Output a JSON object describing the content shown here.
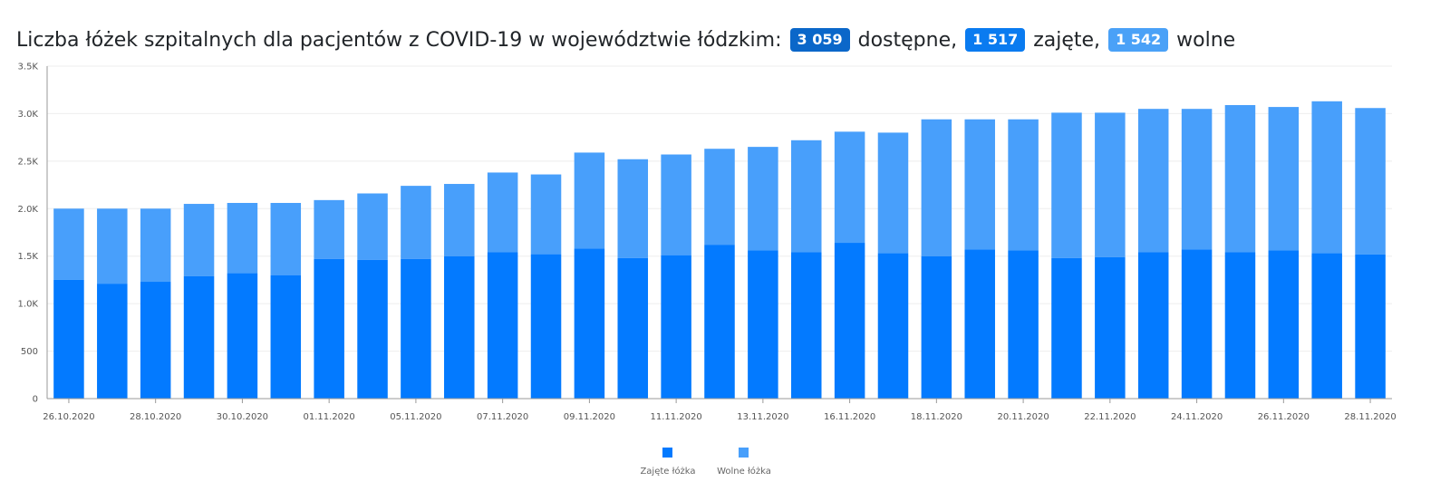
{
  "title": {
    "prefix": "Liczba łóżek szpitalnych dla pacjentów z COVID-19 w województwie łódzkim:",
    "badge_available": "3 059",
    "label_available": "dostępne,",
    "badge_occupied": "1 517",
    "label_occupied": "zajęte,",
    "badge_free": "1 542",
    "label_free": "wolne"
  },
  "colors": {
    "badge_available": "#0b67c9",
    "badge_occupied": "#0a7bf0",
    "badge_free": "#4aa1f7",
    "occupied": "#037aff",
    "free": "#489ffb",
    "axis": "#999999",
    "grid": "#eeeeee"
  },
  "chart_data": {
    "type": "bar",
    "stacked": true,
    "x": [
      "26.10.2020",
      "27.10.2020",
      "28.10.2020",
      "29.10.2020",
      "30.10.2020",
      "31.10.2020",
      "01.11.2020",
      "02.11.2020",
      "05.11.2020",
      "06.11.2020",
      "07.11.2020",
      "08.11.2020",
      "09.11.2020",
      "10.11.2020",
      "11.11.2020",
      "12.11.2020",
      "13.11.2020",
      "14.11.2020",
      "16.11.2020",
      "17.11.2020",
      "18.11.2020",
      "19.11.2020",
      "20.11.2020",
      "21.11.2020",
      "22.11.2020",
      "23.11.2020",
      "24.11.2020",
      "25.11.2020",
      "26.11.2020",
      "27.11.2020",
      "28.11.2020"
    ],
    "x_tick_labels": [
      "26.10.2020",
      "28.10.2020",
      "30.10.2020",
      "01.11.2020",
      "05.11.2020",
      "07.11.2020",
      "09.11.2020",
      "11.11.2020",
      "13.11.2020",
      "16.11.2020",
      "18.11.2020",
      "20.11.2020",
      "22.11.2020",
      "24.11.2020",
      "26.11.2020",
      "28.11.2020"
    ],
    "series": [
      {
        "name": "Zajęte łóżka",
        "values": [
          1250,
          1210,
          1230,
          1290,
          1320,
          1300,
          1470,
          1460,
          1470,
          1500,
          1540,
          1520,
          1580,
          1480,
          1510,
          1620,
          1560,
          1540,
          1640,
          1530,
          1500,
          1570,
          1560,
          1480,
          1490,
          1540,
          1570,
          1540,
          1560,
          1530,
          1517
        ]
      },
      {
        "name": "Wolne łóżka",
        "values": [
          750,
          790,
          770,
          760,
          740,
          760,
          620,
          700,
          770,
          760,
          840,
          840,
          1010,
          1040,
          1060,
          1010,
          1090,
          1180,
          1170,
          1270,
          1440,
          1370,
          1380,
          1530,
          1520,
          1510,
          1480,
          1550,
          1510,
          1600,
          1542
        ]
      }
    ],
    "ylim": [
      0,
      3500
    ],
    "y_ticks": [
      0,
      500,
      1000,
      1500,
      2000,
      2500,
      3000,
      3500
    ],
    "y_tick_labels": [
      "0",
      "500",
      "1.0K",
      "1.5K",
      "2.0K",
      "2.5K",
      "3.0K",
      "3.5K"
    ],
    "grid": true,
    "legend_position": "bottom-center"
  }
}
